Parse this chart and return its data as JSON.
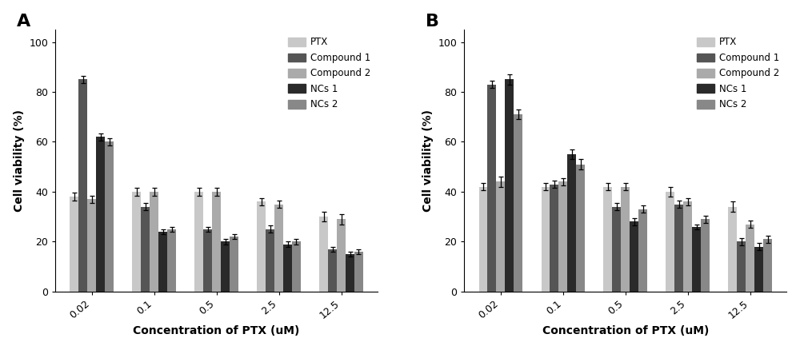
{
  "panel_A": {
    "title": "A",
    "xlabel": "Concentration of PTX (uM)",
    "ylabel": "Cell viability (%)",
    "categories": [
      "0.02",
      "0.1",
      "0.5",
      "2.5",
      "12.5"
    ],
    "series": {
      "PTX": {
        "values": [
          38,
          40,
          40,
          36,
          30
        ],
        "errors": [
          1.5,
          1.5,
          1.5,
          1.5,
          2.0
        ],
        "color": "#c8c8c8"
      },
      "Compound 1": {
        "values": [
          85,
          34,
          25,
          25,
          17
        ],
        "errors": [
          1.5,
          1.5,
          1.0,
          1.5,
          1.0
        ],
        "color": "#555555"
      },
      "Compound 2": {
        "values": [
          37,
          40,
          40,
          35,
          29
        ],
        "errors": [
          1.5,
          1.5,
          1.5,
          1.5,
          2.0
        ],
        "color": "#aaaaaa"
      },
      "NCs 1": {
        "values": [
          62,
          24,
          20,
          19,
          15
        ],
        "errors": [
          1.5,
          1.0,
          1.0,
          1.0,
          1.0
        ],
        "color": "#2a2a2a"
      },
      "NCs 2": {
        "values": [
          60,
          25,
          22,
          20,
          16
        ],
        "errors": [
          1.5,
          1.0,
          1.0,
          1.0,
          1.0
        ],
        "color": "#888888"
      }
    },
    "ylim": [
      0,
      105
    ],
    "yticks": [
      0,
      20,
      40,
      60,
      80,
      100
    ]
  },
  "panel_B": {
    "title": "B",
    "xlabel": "Concentration of PTX (uM)",
    "ylabel": "Cell viability (%)",
    "categories": [
      "0.02",
      "0.1",
      "0.5",
      "2.5",
      "12.5"
    ],
    "series": {
      "PTX": {
        "values": [
          42,
          42,
          42,
          40,
          34
        ],
        "errors": [
          1.5,
          1.5,
          1.5,
          2.0,
          2.0
        ],
        "color": "#c8c8c8"
      },
      "Compound 1": {
        "values": [
          83,
          43,
          34,
          35,
          20
        ],
        "errors": [
          1.5,
          1.5,
          1.5,
          1.5,
          1.5
        ],
        "color": "#555555"
      },
      "Compound 2": {
        "values": [
          44,
          44,
          42,
          36,
          27
        ],
        "errors": [
          2.0,
          1.5,
          1.5,
          1.5,
          1.5
        ],
        "color": "#aaaaaa"
      },
      "NCs 1": {
        "values": [
          85,
          55,
          28,
          26,
          18
        ],
        "errors": [
          2.0,
          2.0,
          1.5,
          1.0,
          1.5
        ],
        "color": "#2a2a2a"
      },
      "NCs 2": {
        "values": [
          71,
          51,
          33,
          29,
          21
        ],
        "errors": [
          2.0,
          2.0,
          1.5,
          1.5,
          1.5
        ],
        "color": "#888888"
      }
    },
    "ylim": [
      0,
      105
    ],
    "yticks": [
      0,
      20,
      40,
      60,
      80,
      100
    ]
  },
  "legend_labels": [
    "PTX",
    "Compound 1",
    "Compound 2",
    "NCs 1",
    "NCs 2"
  ],
  "legend_colors": [
    "#c8c8c8",
    "#555555",
    "#aaaaaa",
    "#2a2a2a",
    "#888888"
  ],
  "bar_width": 0.14,
  "figsize": [
    10.0,
    4.38
  ],
  "dpi": 100,
  "background_color": "#ffffff"
}
